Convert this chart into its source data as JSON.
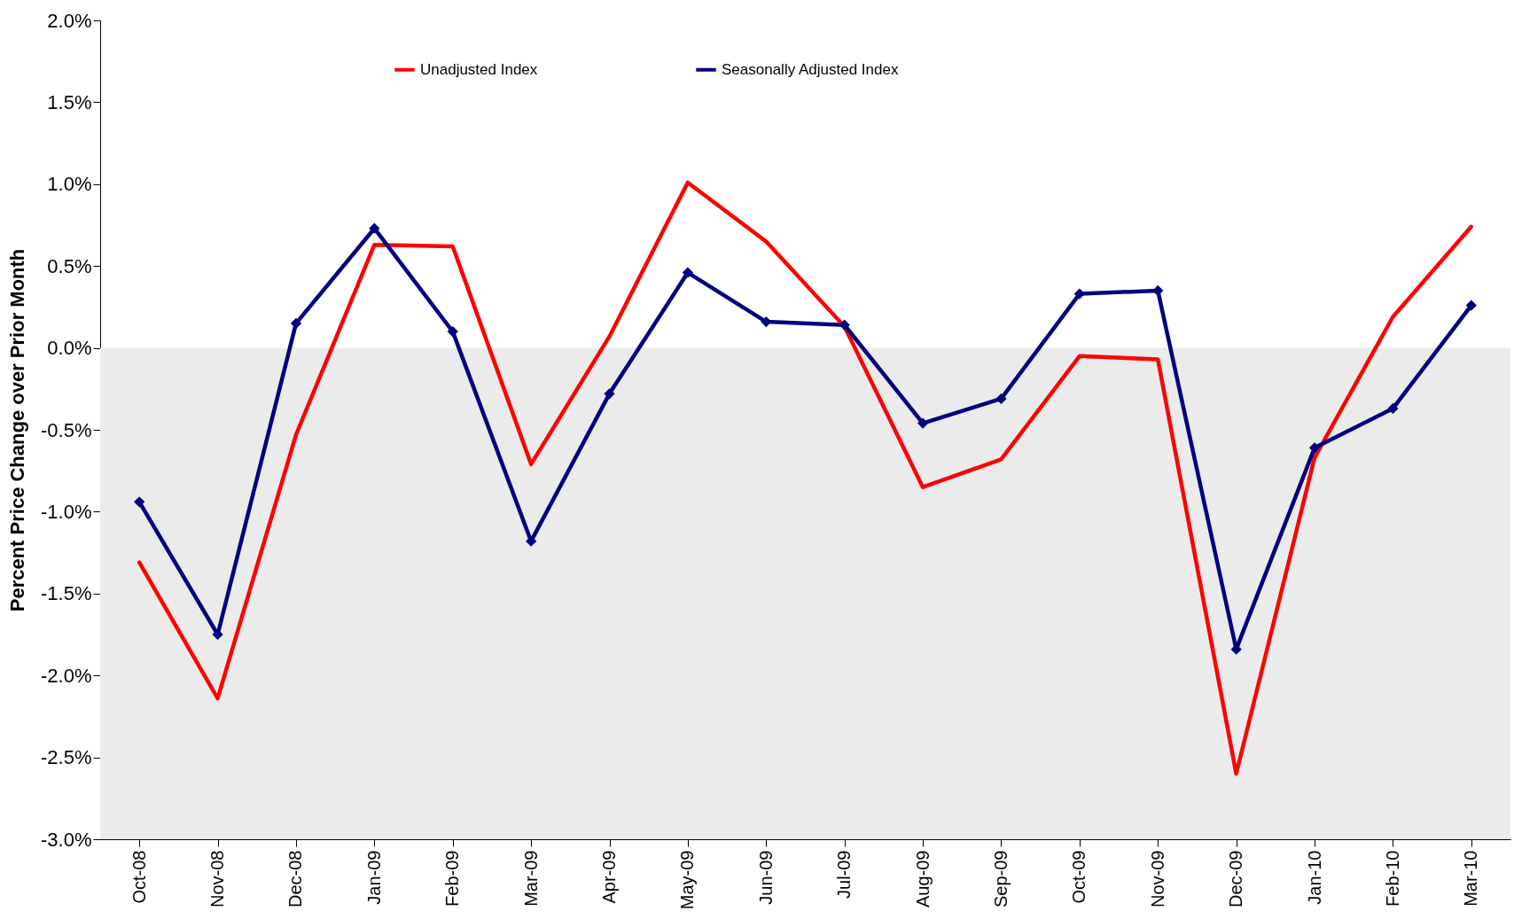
{
  "chart_data": {
    "type": "line",
    "ylabel": "Percent Price Change over Prior Month",
    "categories": [
      "Oct-08",
      "Nov-08",
      "Dec-08",
      "Jan-09",
      "Feb-09",
      "Mar-09",
      "Apr-09",
      "May-09",
      "Jun-09",
      "Jul-09",
      "Aug-09",
      "Sep-09",
      "Oct-09",
      "Nov-09",
      "Dec-09",
      "Jan-10",
      "Feb-10",
      "Mar-10"
    ],
    "series": [
      {
        "name": "Unadjusted Index",
        "color": "#ff0000",
        "marker": "none",
        "values": [
          -1.31,
          -2.14,
          -0.53,
          0.63,
          0.62,
          -0.71,
          0.07,
          1.01,
          0.65,
          0.13,
          -0.85,
          -0.68,
          -0.05,
          -0.07,
          -2.6,
          -0.67,
          0.19,
          0.74
        ]
      },
      {
        "name": "Seasonally Adjusted Index",
        "color": "#000080",
        "marker": "diamond",
        "values": [
          -0.94,
          -1.75,
          0.15,
          0.73,
          0.1,
          -1.18,
          -0.28,
          0.46,
          0.16,
          0.14,
          -0.46,
          -0.31,
          0.33,
          0.35,
          -1.84,
          -0.61,
          -0.37,
          0.26
        ]
      }
    ],
    "ylim": [
      -3,
      2
    ],
    "yticks": [
      {
        "value": -3,
        "label": "-3.0%"
      },
      {
        "value": -2.5,
        "label": "-2.5%"
      },
      {
        "value": -2,
        "label": "-2.0%"
      },
      {
        "value": -1.5,
        "label": "-1.5%"
      },
      {
        "value": -1,
        "label": "-1.0%"
      },
      {
        "value": -0.5,
        "label": "-0.5%"
      },
      {
        "value": 0,
        "label": "0.0%"
      },
      {
        "value": 0.5,
        "label": "0.5%"
      },
      {
        "value": 1,
        "label": "1.0%"
      },
      {
        "value": 1.5,
        "label": "1.5%"
      },
      {
        "value": 2,
        "label": "2.0%"
      }
    ],
    "bands": [
      {
        "axis": "y",
        "from": 0,
        "to": -3,
        "color": "#ebebeb"
      }
    ],
    "legend": "top",
    "grid": false,
    "line_style": "solid"
  }
}
